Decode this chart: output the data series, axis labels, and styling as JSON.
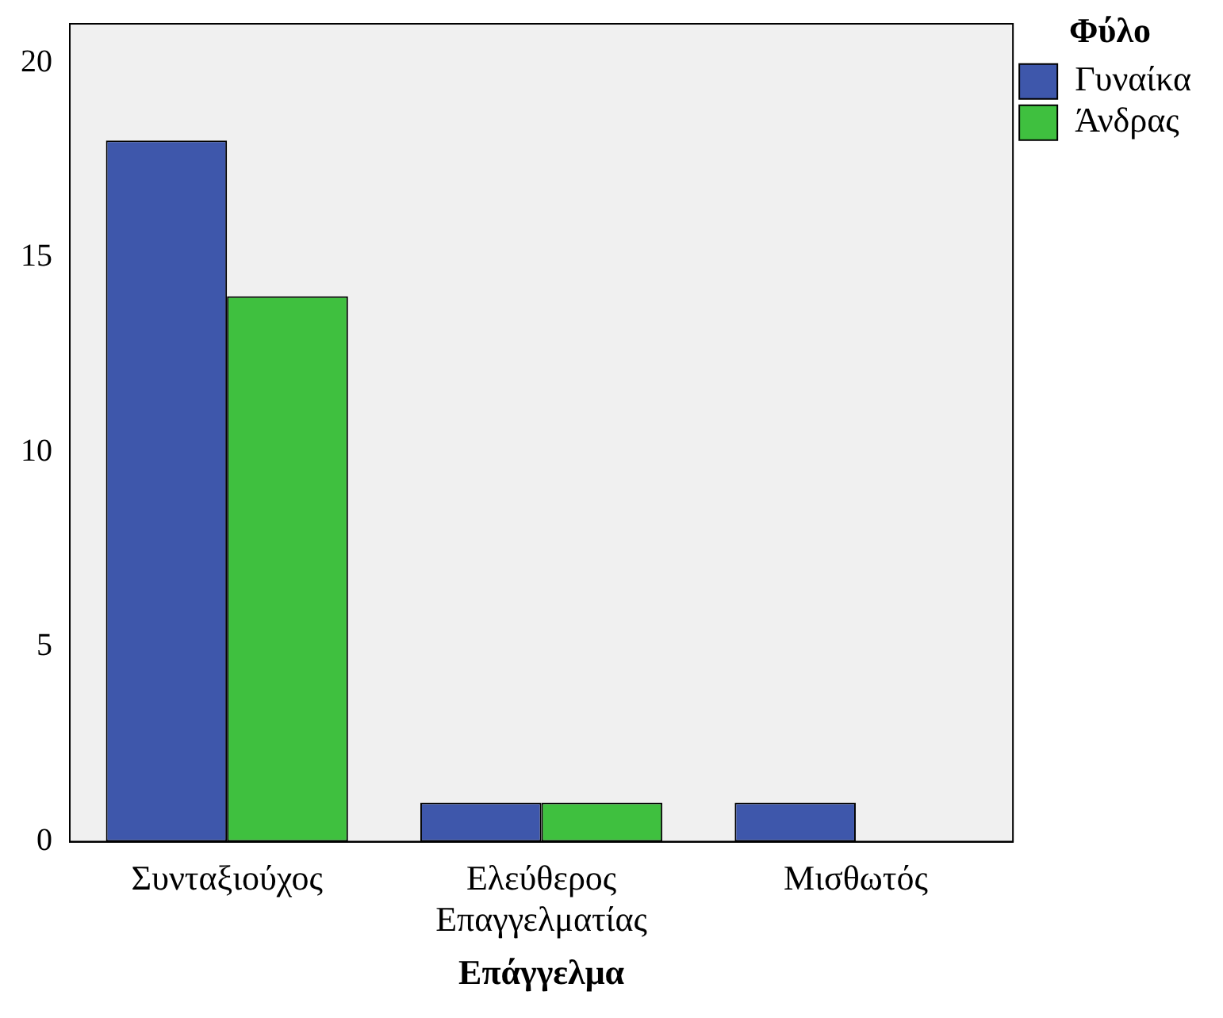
{
  "chart_data": {
    "type": "bar",
    "xlabel": "Επάγγελμα",
    "legend_title": "Φύλο",
    "categories": [
      "Συνταξιούχος",
      "Ελεύθερος\nΕπαγγελματίας",
      "Μισθωτός"
    ],
    "series": [
      {
        "name": "Γυναίκα",
        "color": "#3e57ab",
        "values": [
          18,
          1,
          1
        ]
      },
      {
        "name": "Άνδρας",
        "color": "#3fc03f",
        "values": [
          14,
          1,
          0
        ]
      }
    ],
    "ylim": [
      0,
      21
    ],
    "yticks": [
      0,
      5,
      10,
      15,
      20
    ],
    "grid": false,
    "legend": "top right"
  }
}
